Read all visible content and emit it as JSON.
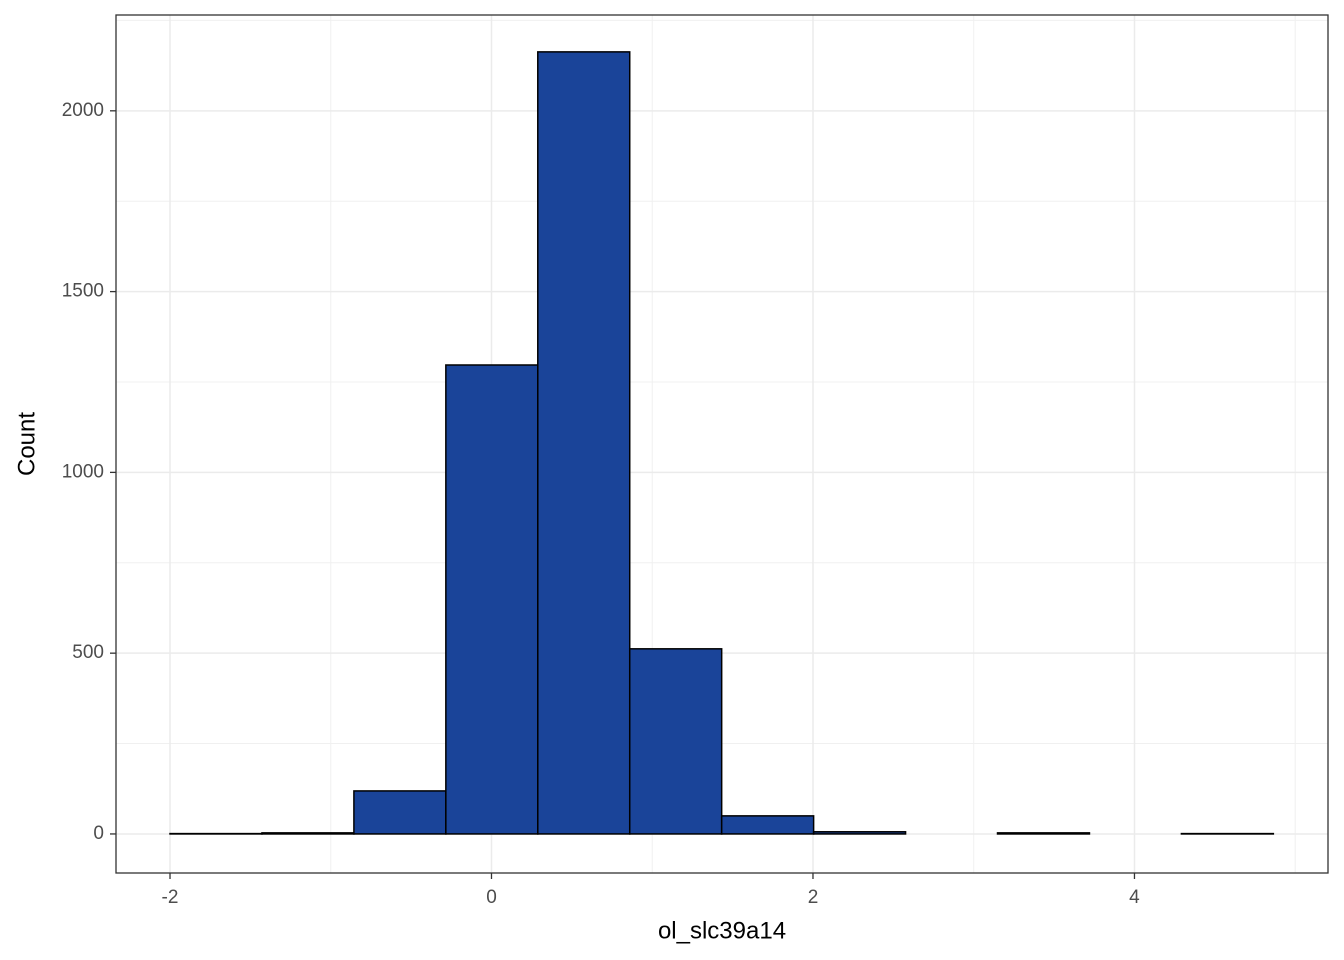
{
  "chart_data": {
    "type": "histogram",
    "x_label": "ol_slc39a14",
    "y_label": "Count",
    "bins": [
      -2.0,
      -1.428,
      -0.856,
      -0.284,
      0.288,
      0.86,
      1.432,
      2.004,
      2.576,
      3.148,
      3.72,
      4.292,
      4.864
    ],
    "values": [
      1,
      3,
      119,
      1297,
      2163,
      512,
      50,
      6,
      0,
      3,
      0,
      1
    ],
    "color": "#1a4499",
    "xlim": [
      -2.336,
      5.204
    ],
    "ylim": [
      -108,
      2265
    ],
    "xticks": [
      -2,
      0,
      2,
      4
    ],
    "yticks": [
      0,
      500,
      1000,
      1500,
      2000
    ],
    "grid": true
  }
}
